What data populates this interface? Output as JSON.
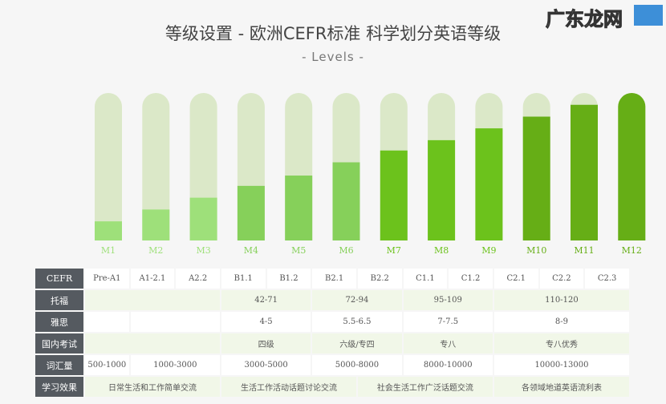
{
  "title": "等级设置 - 欧洲CEFR标准 科学划分英语等级",
  "subtitle": "- Levels -",
  "chart_data": {
    "type": "bar",
    "categories": [
      "M1",
      "M2",
      "M3",
      "M4",
      "M5",
      "M6",
      "M7",
      "M8",
      "M9",
      "M10",
      "M11",
      "M12"
    ],
    "values": [
      0.13,
      0.21,
      0.29,
      0.37,
      0.44,
      0.53,
      0.61,
      0.68,
      0.76,
      0.84,
      0.92,
      1.0
    ],
    "ylim": [
      0,
      1
    ],
    "colors": [
      "#9ee07a",
      "#9ee07a",
      "#9ee07a",
      "#86d05a",
      "#86d05a",
      "#86d05a",
      "#6cc21c",
      "#6cc21c",
      "#6cc21c",
      "#66ae16",
      "#66ae16",
      "#66ae16"
    ],
    "track_color": "#dbe8c8",
    "grid": false
  },
  "table": {
    "rows": [
      {
        "header": "CEFR",
        "cells": [
          {
            "t": "Pre-A1",
            "s": 1
          },
          {
            "t": "A1-2.1",
            "s": 1
          },
          {
            "t": "A2.2",
            "s": 1
          },
          {
            "t": "B1.1",
            "s": 1
          },
          {
            "t": "B1.2",
            "s": 1
          },
          {
            "t": "B2.1",
            "s": 1
          },
          {
            "t": "B2.2",
            "s": 1
          },
          {
            "t": "C1.1",
            "s": 1
          },
          {
            "t": "C1.2",
            "s": 1
          },
          {
            "t": "C2.1",
            "s": 1
          },
          {
            "t": "C2.2",
            "s": 1
          },
          {
            "t": "C2.3",
            "s": 1
          }
        ]
      },
      {
        "header": "托福",
        "cells": [
          {
            "t": "",
            "s": 3
          },
          {
            "t": "42-71",
            "s": 2
          },
          {
            "t": "72-94",
            "s": 2
          },
          {
            "t": "95-109",
            "s": 2
          },
          {
            "t": "110-120",
            "s": 3
          }
        ]
      },
      {
        "header": "雅思",
        "cells": [
          {
            "t": "",
            "s": 1
          },
          {
            "t": "",
            "s": 2
          },
          {
            "t": "4-5",
            "s": 2
          },
          {
            "t": "5.5-6.5",
            "s": 2
          },
          {
            "t": "7-7.5",
            "s": 2
          },
          {
            "t": "8-9",
            "s": 3
          }
        ]
      },
      {
        "header": "国内考试",
        "cells": [
          {
            "t": "",
            "s": 3
          },
          {
            "t": "四级",
            "s": 2
          },
          {
            "t": "六级/专四",
            "s": 2
          },
          {
            "t": "专八",
            "s": 2
          },
          {
            "t": "专八优秀",
            "s": 3
          }
        ]
      },
      {
        "header": "词汇量",
        "cells": [
          {
            "t": "500-1000",
            "s": 1
          },
          {
            "t": "1000-3000",
            "s": 2
          },
          {
            "t": "3000-5000",
            "s": 2
          },
          {
            "t": "5000-8000",
            "s": 2
          },
          {
            "t": "8000-10000",
            "s": 2
          },
          {
            "t": "10000-13000",
            "s": 3
          }
        ]
      },
      {
        "header": "学习效果",
        "cells": [
          {
            "t": "日常生活和工作简单交流",
            "s": 3
          },
          {
            "t": "生活工作活动话题讨论交流",
            "s": 3
          },
          {
            "t": "社会生活工作广泛话题交流",
            "s": 3
          },
          {
            "t": "各领域地道英语流利表",
            "s": 3
          }
        ]
      }
    ]
  },
  "watermark": "广东龙网"
}
